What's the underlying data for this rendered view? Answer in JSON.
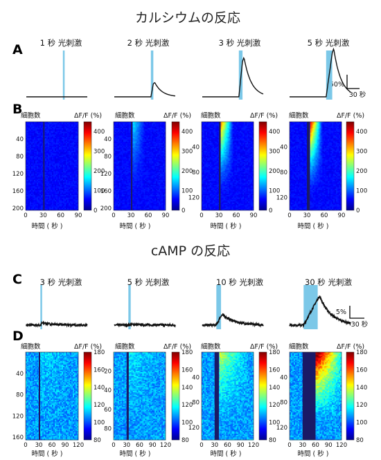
{
  "sections": {
    "calcium_title": "カルシウムの反応",
    "camp_title": "cAMP の反応"
  },
  "panel_letters": [
    "A",
    "B",
    "C",
    "D"
  ],
  "chart_data": [
    {
      "id": "A",
      "type": "line",
      "description_units": {
        "x": "秒",
        "y": "%"
      },
      "panels": [
        {
          "label": "1 秒 光刺激",
          "stim_duration": 1,
          "peak": 0
        },
        {
          "label": "2 秒 光刺激",
          "stim_duration": 2,
          "peak": 40
        },
        {
          "label": "3 秒 光刺激",
          "stim_duration": 3,
          "peak": 110
        },
        {
          "label": "5 秒 光刺激",
          "stim_duration": 5,
          "peak": 135
        }
      ],
      "scale_bar": {
        "y_label": "50%",
        "x_label": "30 秒",
        "y_value": 50,
        "x_value": 30
      }
    },
    {
      "id": "B",
      "type": "heatmap",
      "ylabel": "細胞数",
      "cbar_label": "ΔF/F (%)",
      "xlabel": "時間 ( 秒 )",
      "xticks": [
        "0",
        "30",
        "60",
        "90"
      ],
      "cbar_ticks": [
        "0",
        "100",
        "200",
        "300",
        "400"
      ],
      "cbar_range": [
        0,
        450
      ],
      "panels": [
        {
          "yticks": [
            "40",
            "80",
            "120",
            "160",
            "200"
          ],
          "ymax": 205,
          "stim_duration": 1,
          "intensity": 0.02
        },
        {
          "yticks": [
            "40",
            "80",
            "120",
            "160",
            "200"
          ],
          "ymax": 205,
          "stim_duration": 2,
          "intensity": 0.3
        },
        {
          "yticks": [
            "40",
            "80",
            "120"
          ],
          "ymax": 140,
          "stim_duration": 3,
          "intensity": 0.75
        },
        {
          "yticks": [
            "40",
            "80",
            "120"
          ],
          "ymax": 140,
          "stim_duration": 5,
          "intensity": 0.95
        }
      ]
    },
    {
      "id": "C",
      "type": "line",
      "panels": [
        {
          "label": "3 秒 光刺激",
          "stim_duration": 3,
          "peak": 1
        },
        {
          "label": "5 秒 光刺激",
          "stim_duration": 5,
          "peak": 0.3
        },
        {
          "label": "10 秒 光刺激",
          "stim_duration": 10,
          "peak": 5
        },
        {
          "label": "30 秒 光刺激",
          "stim_duration": 30,
          "peak": 14
        }
      ],
      "scale_bar": {
        "y_label": "5%",
        "x_label": "30 秒",
        "y_value": 5,
        "x_value": 30
      }
    },
    {
      "id": "D",
      "type": "heatmap",
      "ylabel": "細胞数",
      "cbar_label": "ΔF/F (%)",
      "xlabel": "時間 ( 秒 )",
      "xticks": [
        "0",
        "30",
        "60",
        "90",
        "120"
      ],
      "cbar_ticks": [
        "80",
        "100",
        "120",
        "140",
        "160",
        "180"
      ],
      "cbar_range": [
        80,
        180
      ],
      "panels": [
        {
          "yticks": [
            "40",
            "80",
            "120",
            "160"
          ],
          "ymax": 165,
          "stim_duration": 3,
          "intensity": 0.08
        },
        {
          "yticks": [
            "20",
            "40",
            "60",
            "80"
          ],
          "ymax": 92,
          "stim_duration": 5,
          "intensity": 0.1
        },
        {
          "yticks": [
            "40",
            "80",
            "120"
          ],
          "ymax": 140,
          "stim_duration": 10,
          "intensity": 0.35
        },
        {
          "yticks": [
            "40",
            "80",
            "120"
          ],
          "ymax": 140,
          "stim_duration": 30,
          "intensity": 0.9
        }
      ]
    }
  ],
  "colors": {
    "stim": "#7cc8e8",
    "trace": "#111111",
    "dark_band": "#1a1a66"
  }
}
